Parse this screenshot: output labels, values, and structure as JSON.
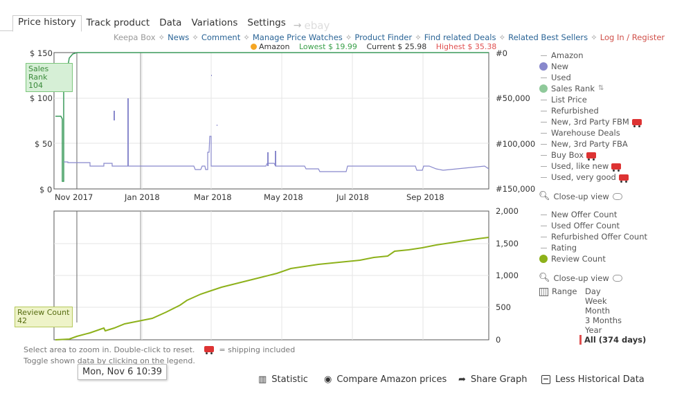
{
  "tabs": {
    "price_history": "Price history",
    "track_product": "Track product",
    "data": "Data",
    "variations": "Variations",
    "settings": "Settings",
    "ebay": "ebay"
  },
  "toplinks": {
    "keepa_box": "Keepa Box",
    "news": "News",
    "comment": "Comment",
    "manage": "Manage Price Watches",
    "finder": "Product Finder",
    "deals": "Find related Deals",
    "best": "Related Best Sellers",
    "login": "Log In / Register"
  },
  "stats": {
    "amazon": "Amazon",
    "lowest": "Lowest $ 19.99",
    "current": "Current $ 25.98",
    "highest": "Highest $ 35.38"
  },
  "top_chart": {
    "y_left": [
      "$ 150",
      "$ 100",
      "$ 50",
      "$ 0"
    ],
    "y_right": [
      "#0",
      "#50,000",
      "#100,000",
      "#150,000"
    ],
    "x_labels": [
      "Nov 2017",
      "Jan 2018",
      "Mar 2018",
      "May 2018",
      "Jul 2018",
      "Sep 2018"
    ],
    "sales_rank_label": "Sales Rank",
    "sales_rank_value": "104"
  },
  "bottom_chart": {
    "y_right": [
      "2,000",
      "1,500",
      "1,000",
      "500",
      "0"
    ],
    "review_label": "Review Count",
    "review_value": "42"
  },
  "legend_top": {
    "amazon": "Amazon",
    "new": "New",
    "used": "Used",
    "sales_rank": "Sales Rank",
    "list_price": "List Price",
    "refurbished": "Refurbished",
    "fbm": "New, 3rd Party FBM",
    "warehouse": "Warehouse Deals",
    "fba": "New, 3rd Party FBA",
    "buybox": "Buy Box",
    "used_like_new": "Used, like new",
    "used_very_good": "Used, very good",
    "closeup": "Close-up view"
  },
  "legend_bottom": {
    "new_offer": "New Offer Count",
    "used_offer": "Used Offer Count",
    "refurb_offer": "Refurbished Offer Count",
    "rating": "Rating",
    "review": "Review Count",
    "closeup": "Close-up view",
    "range": "Range",
    "ranges": [
      "Day",
      "Week",
      "Month",
      "3 Months",
      "Year"
    ],
    "all": "All (374 days)"
  },
  "hints": {
    "line1": "Select area to zoom in. Double-click to reset.",
    "shipping": "= shipping included",
    "line2": "Toggle shown data by clicking on the legend."
  },
  "date_tooltip": "Mon, Nov 6 10:39",
  "bottom_actions": {
    "statistic": "Statistic",
    "compare": "Compare Amazon prices",
    "share": "Share Graph",
    "less": "Less Historical Data"
  },
  "colors": {
    "new": "#8888cc",
    "sales_rank": "#3a9a5a",
    "review": "#8db11a",
    "amazon_dot": "#f5a623",
    "lowest": "#3aa04a",
    "highest": "#e05050",
    "link": "#2a6496",
    "login": "#d0504a"
  }
}
